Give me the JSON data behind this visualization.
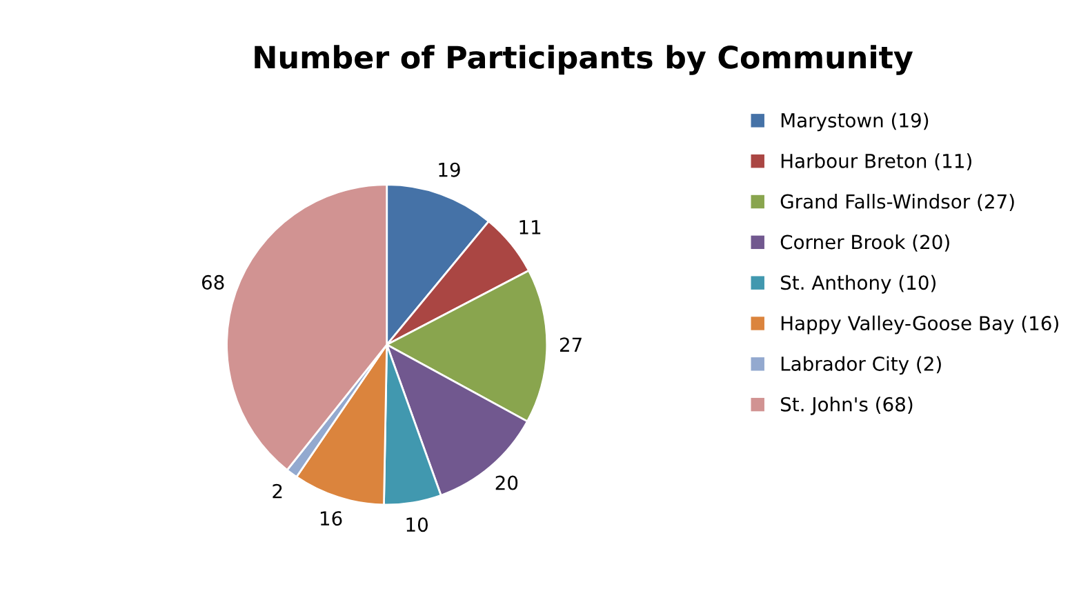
{
  "chart_data": {
    "type": "pie",
    "title": "Number of Participants by Community",
    "categories": [
      "Marystown (19)",
      "Harbour Breton (11)",
      "Grand Falls-Windsor (27)",
      "Corner Brook (20)",
      "St. Anthony (10)",
      "Happy Valley-Goose Bay (16)",
      "Labrador City (2)",
      "St. John's (68)"
    ],
    "values": [
      19,
      11,
      27,
      20,
      10,
      16,
      2,
      68
    ],
    "colors": [
      "#4572a7",
      "#aa4643",
      "#89a54e",
      "#71588f",
      "#4198af",
      "#db843d",
      "#93a9cf",
      "#d19392"
    ],
    "data_labels": true,
    "legend": "right"
  }
}
